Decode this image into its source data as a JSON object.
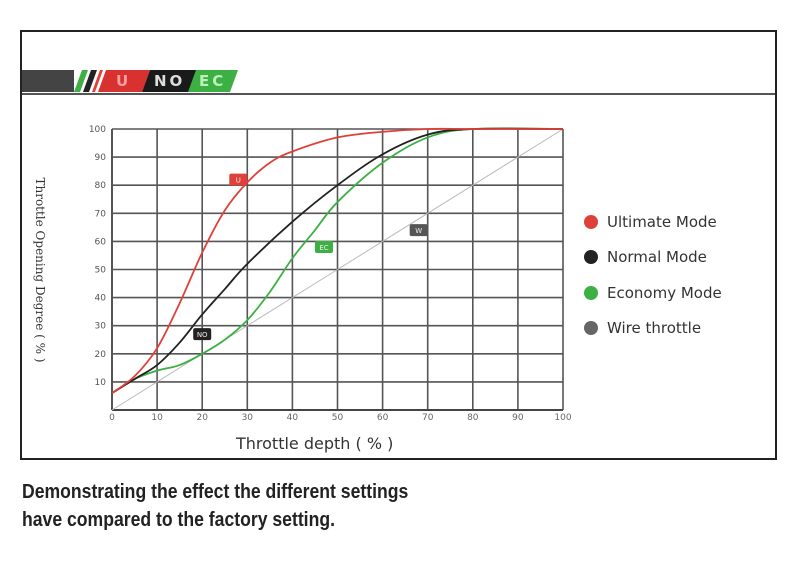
{
  "banner": {
    "u": "U",
    "no": "NO",
    "ec": "EC"
  },
  "chart_data": {
    "type": "line",
    "title": "",
    "xlabel": "Throttle depth ( % )",
    "ylabel": "Throttle Opening Degree ( % )",
    "xlim": [
      0,
      100
    ],
    "ylim": [
      0,
      100
    ],
    "xticks": [
      "0",
      "10",
      "20",
      "30",
      "40",
      "50",
      "60",
      "70",
      "80",
      "90",
      "100"
    ],
    "yticks": [
      "10",
      "20",
      "30",
      "40",
      "50",
      "60",
      "70",
      "80",
      "90",
      "100"
    ],
    "grid": true,
    "legend_position": "right",
    "series": [
      {
        "name": "Ultimate Mode",
        "badge": "U",
        "color": "#e0403a",
        "x": [
          0,
          5,
          10,
          15,
          20,
          25,
          30,
          35,
          40,
          50,
          60,
          70,
          80,
          100
        ],
        "y": [
          6,
          12,
          22,
          38,
          56,
          71,
          81,
          88,
          92,
          97,
          99,
          100,
          100,
          100
        ],
        "badge_at": [
          28,
          82
        ]
      },
      {
        "name": "Normal Mode",
        "badge": "NO",
        "color": "#222222",
        "x": [
          0,
          5,
          10,
          15,
          20,
          25,
          30,
          40,
          50,
          60,
          70,
          80,
          100
        ],
        "y": [
          6,
          11,
          16,
          24,
          34,
          43,
          52,
          67,
          80,
          91,
          98,
          100,
          100
        ],
        "badge_at": [
          20,
          27
        ]
      },
      {
        "name": "Economy Mode",
        "badge": "EC",
        "color": "#3cb043",
        "x": [
          0,
          5,
          10,
          15,
          20,
          25,
          30,
          35,
          40,
          45,
          50,
          60,
          70,
          80,
          100
        ],
        "y": [
          6,
          11,
          14,
          16,
          20,
          25,
          32,
          42,
          54,
          64,
          74,
          88,
          97,
          100,
          100
        ],
        "badge_at": [
          47,
          58
        ]
      },
      {
        "name": "Wire throttle",
        "badge": "W",
        "color": "#bbbbbb",
        "x": [
          0,
          100
        ],
        "y": [
          0,
          100
        ],
        "badge_at": [
          68,
          64
        ]
      }
    ]
  },
  "legend_colors": [
    "#e0403a",
    "#222222",
    "#3cb043",
    "#666666"
  ],
  "caption": [
    "Demonstrating the effect the different settings",
    "have compared to the factory setting."
  ]
}
